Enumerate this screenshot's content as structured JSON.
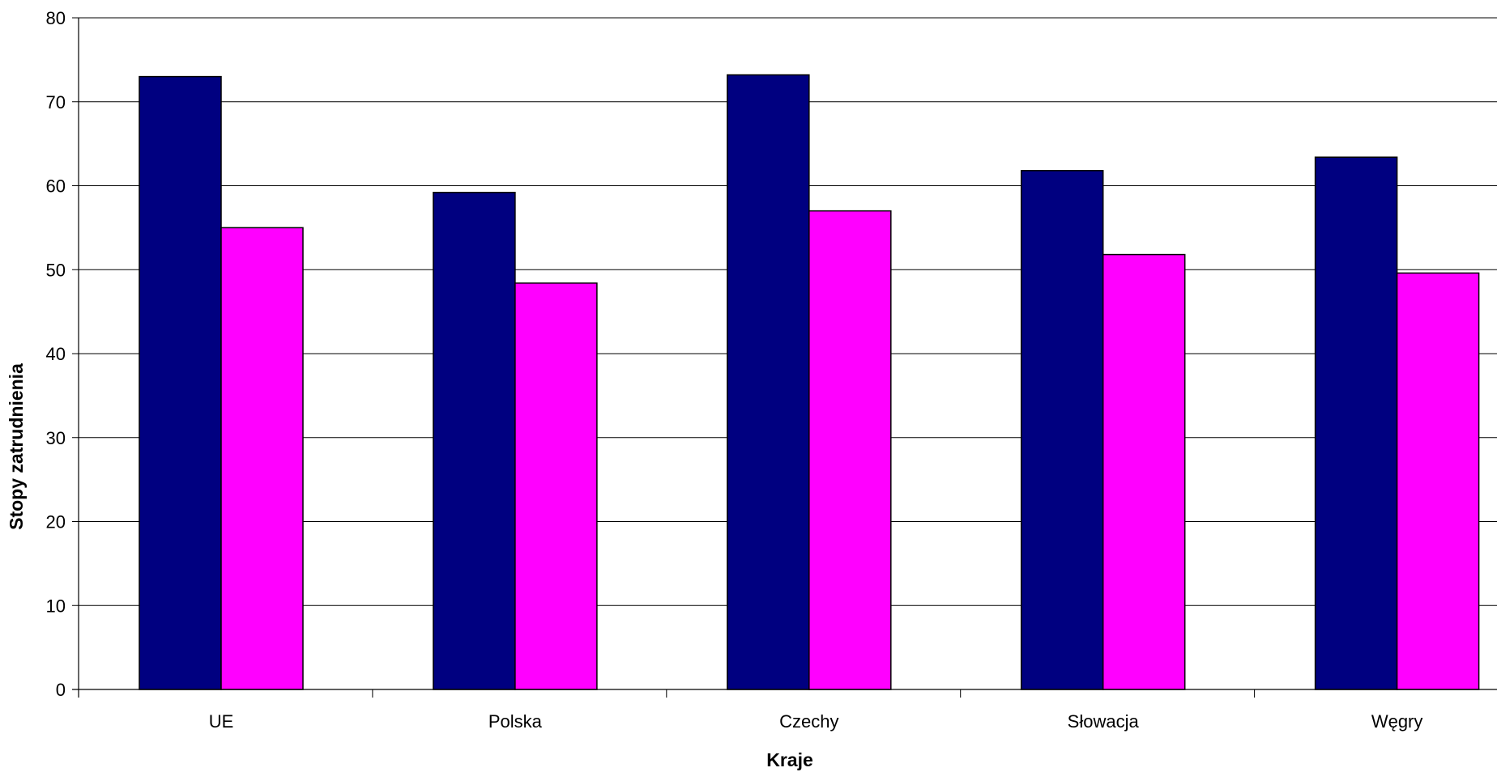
{
  "chart_data": {
    "type": "bar",
    "title": "",
    "xlabel": "Kraje",
    "ylabel": "Stopy zatrudnienia",
    "categories": [
      "UE",
      "Polska",
      "Czechy",
      "Słowacja",
      "Węgry"
    ],
    "ylim": [
      0,
      80
    ],
    "yticks": [
      "0",
      "10",
      "20",
      "30",
      "40",
      "50",
      "60",
      "70",
      "80"
    ],
    "grid": true,
    "legend": "none",
    "series": [
      {
        "color": "#000080",
        "values": [
          73.0,
          59.2,
          73.2,
          61.8,
          63.4
        ]
      },
      {
        "color": "#FF00FF",
        "values": [
          55.0,
          48.4,
          57.0,
          51.8,
          49.6
        ]
      }
    ]
  }
}
